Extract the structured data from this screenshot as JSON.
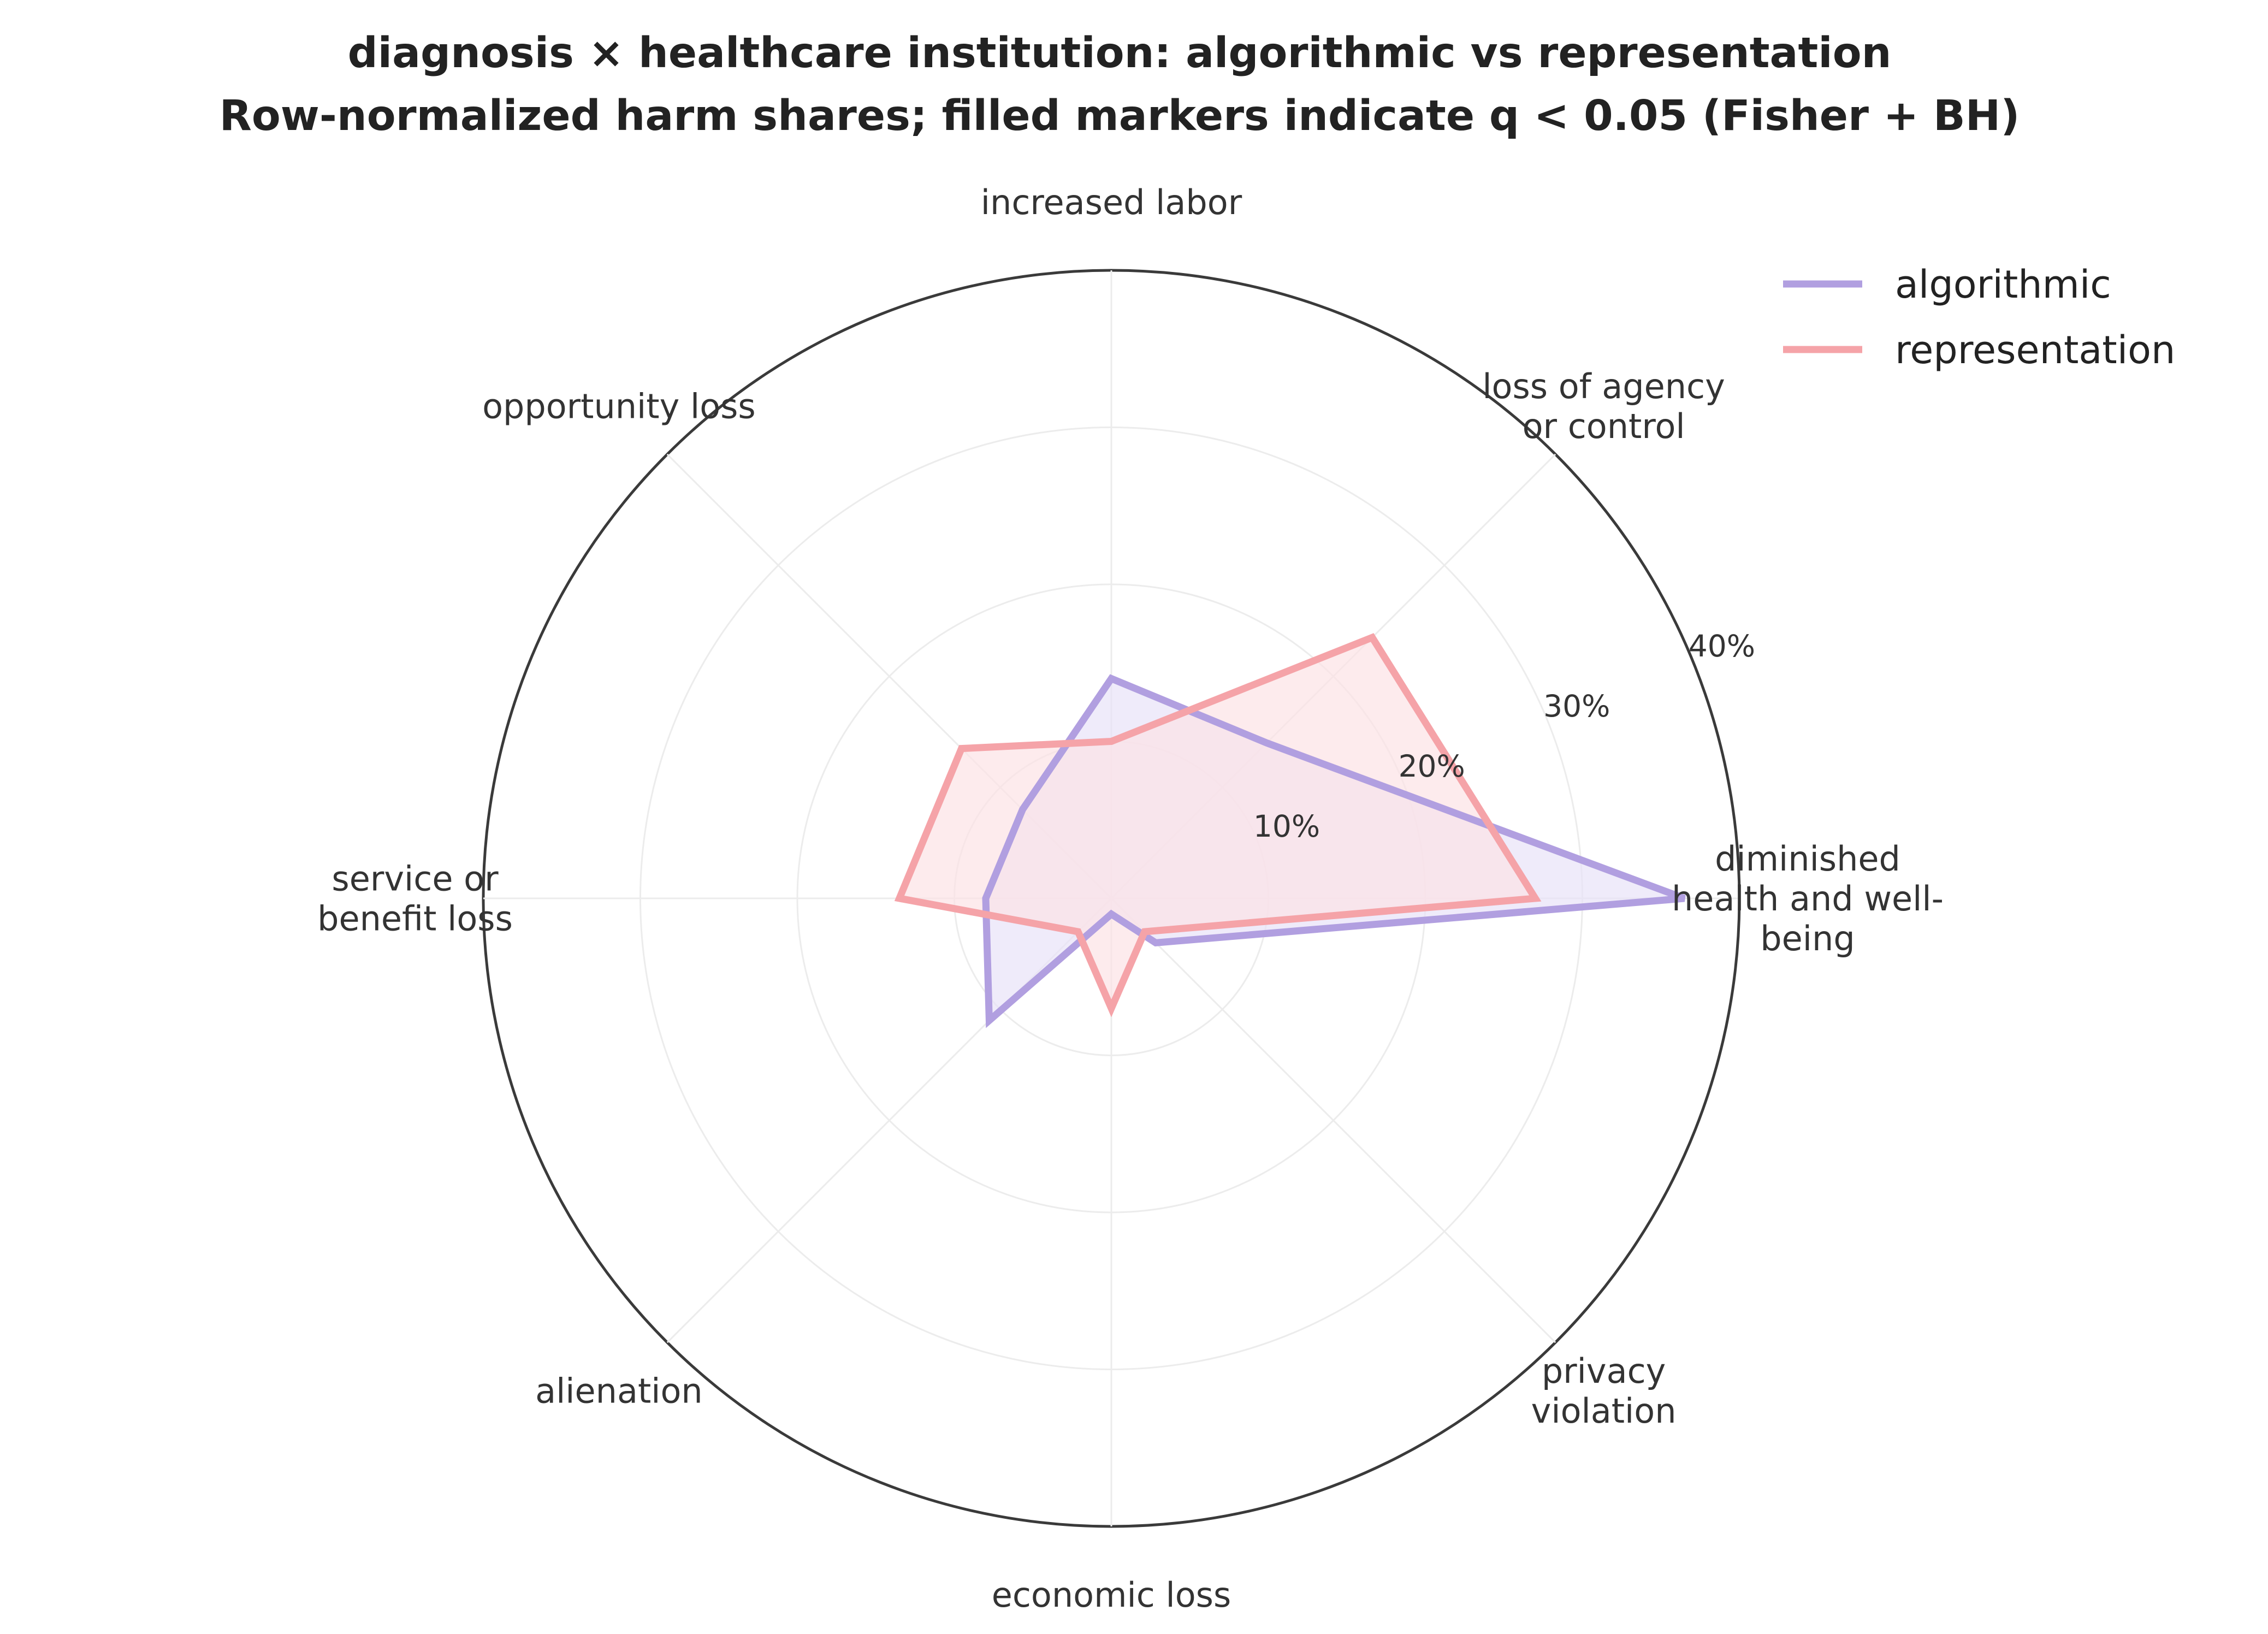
{
  "chart_data": {
    "type": "radar",
    "title": "diagnosis × healthcare institution: algorithmic vs representation",
    "subtitle": "Row-normalized harm shares; filled markers indicate q < 0.05 (Fisher + BH)",
    "categories": [
      [
        "diminished",
        "health and well-",
        "being"
      ],
      [
        "loss of agency",
        "or control"
      ],
      [
        "increased labor"
      ],
      [
        "opportunity loss"
      ],
      [
        "service or",
        "benefit loss"
      ],
      [
        "alienation"
      ],
      [
        "economic loss"
      ],
      [
        "privacy",
        "violation"
      ]
    ],
    "r_ticks": [
      10,
      20,
      30,
      40
    ],
    "r_tick_labels": [
      "10%",
      "20%",
      "30%",
      "40%"
    ],
    "r_max": 40,
    "series": [
      {
        "name": "algorithmic",
        "color": "#b19fe0",
        "fill": "#e8e2f8",
        "values": [
          36.5,
          14.0,
          14.0,
          8.0,
          8.0,
          11.0,
          1.0,
          4.0
        ]
      },
      {
        "name": "representation",
        "color": "#f5a3a8",
        "fill": "#fce3e5",
        "values": [
          27.0,
          23.5,
          10.0,
          13.5,
          13.5,
          3.0,
          7.0,
          3.0
        ]
      }
    ],
    "legend": {
      "position": "top-right",
      "entries": [
        "algorithmic",
        "representation"
      ]
    },
    "grid": true
  }
}
